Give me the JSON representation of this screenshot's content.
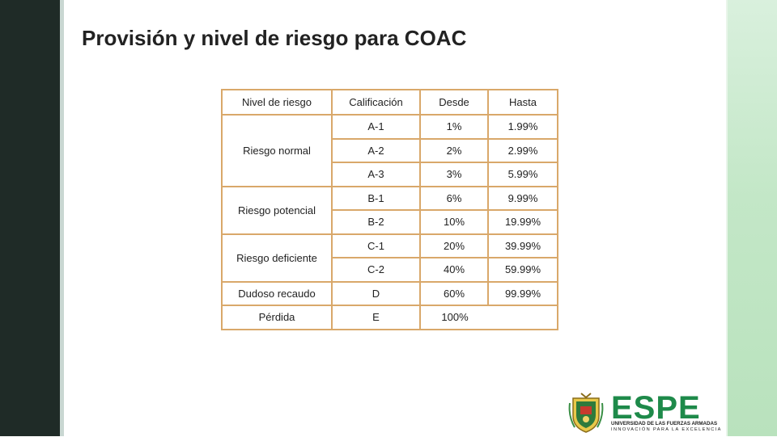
{
  "slide": {
    "title": "Provisión y nivel de riesgo para COAC"
  },
  "table": {
    "headers": {
      "nivel": "Nivel de riesgo",
      "calificacion": "Calificación",
      "desde": "Desde",
      "hasta": "Hasta"
    },
    "groups": {
      "normal": "Riesgo normal",
      "potencial": "Riesgo potencial",
      "deficiente": "Riesgo deficiente",
      "dudoso": "Dudoso recaudo",
      "perdida": "Pérdida"
    },
    "rows": [
      {
        "calificacion": "A-1",
        "desde": "1%",
        "hasta": "1.99%"
      },
      {
        "calificacion": "A-2",
        "desde": "2%",
        "hasta": "2.99%"
      },
      {
        "calificacion": "A-3",
        "desde": "3%",
        "hasta": "5.99%"
      },
      {
        "calificacion": "B-1",
        "desde": "6%",
        "hasta": "9.99%"
      },
      {
        "calificacion": "B-2",
        "desde": "10%",
        "hasta": "19.99%"
      },
      {
        "calificacion": "C-1",
        "desde": "20%",
        "hasta": "39.99%"
      },
      {
        "calificacion": "C-2",
        "desde": "40%",
        "hasta": "59.99%"
      },
      {
        "calificacion": "D",
        "desde": "60%",
        "hasta": "99.99%"
      },
      {
        "calificacion": "E",
        "desde_hasta": "100%"
      }
    ]
  },
  "logo": {
    "brand": "ESPE",
    "line1": "UNIVERSIDAD DE LAS FUERZAS ARMADAS",
    "line2": "INNOVACIÓN PARA LA EXCELENCIA"
  },
  "colors": {
    "table_border": "#d9a86a",
    "brand_green": "#1e8a4a",
    "left_bar": "#1f2b27"
  }
}
